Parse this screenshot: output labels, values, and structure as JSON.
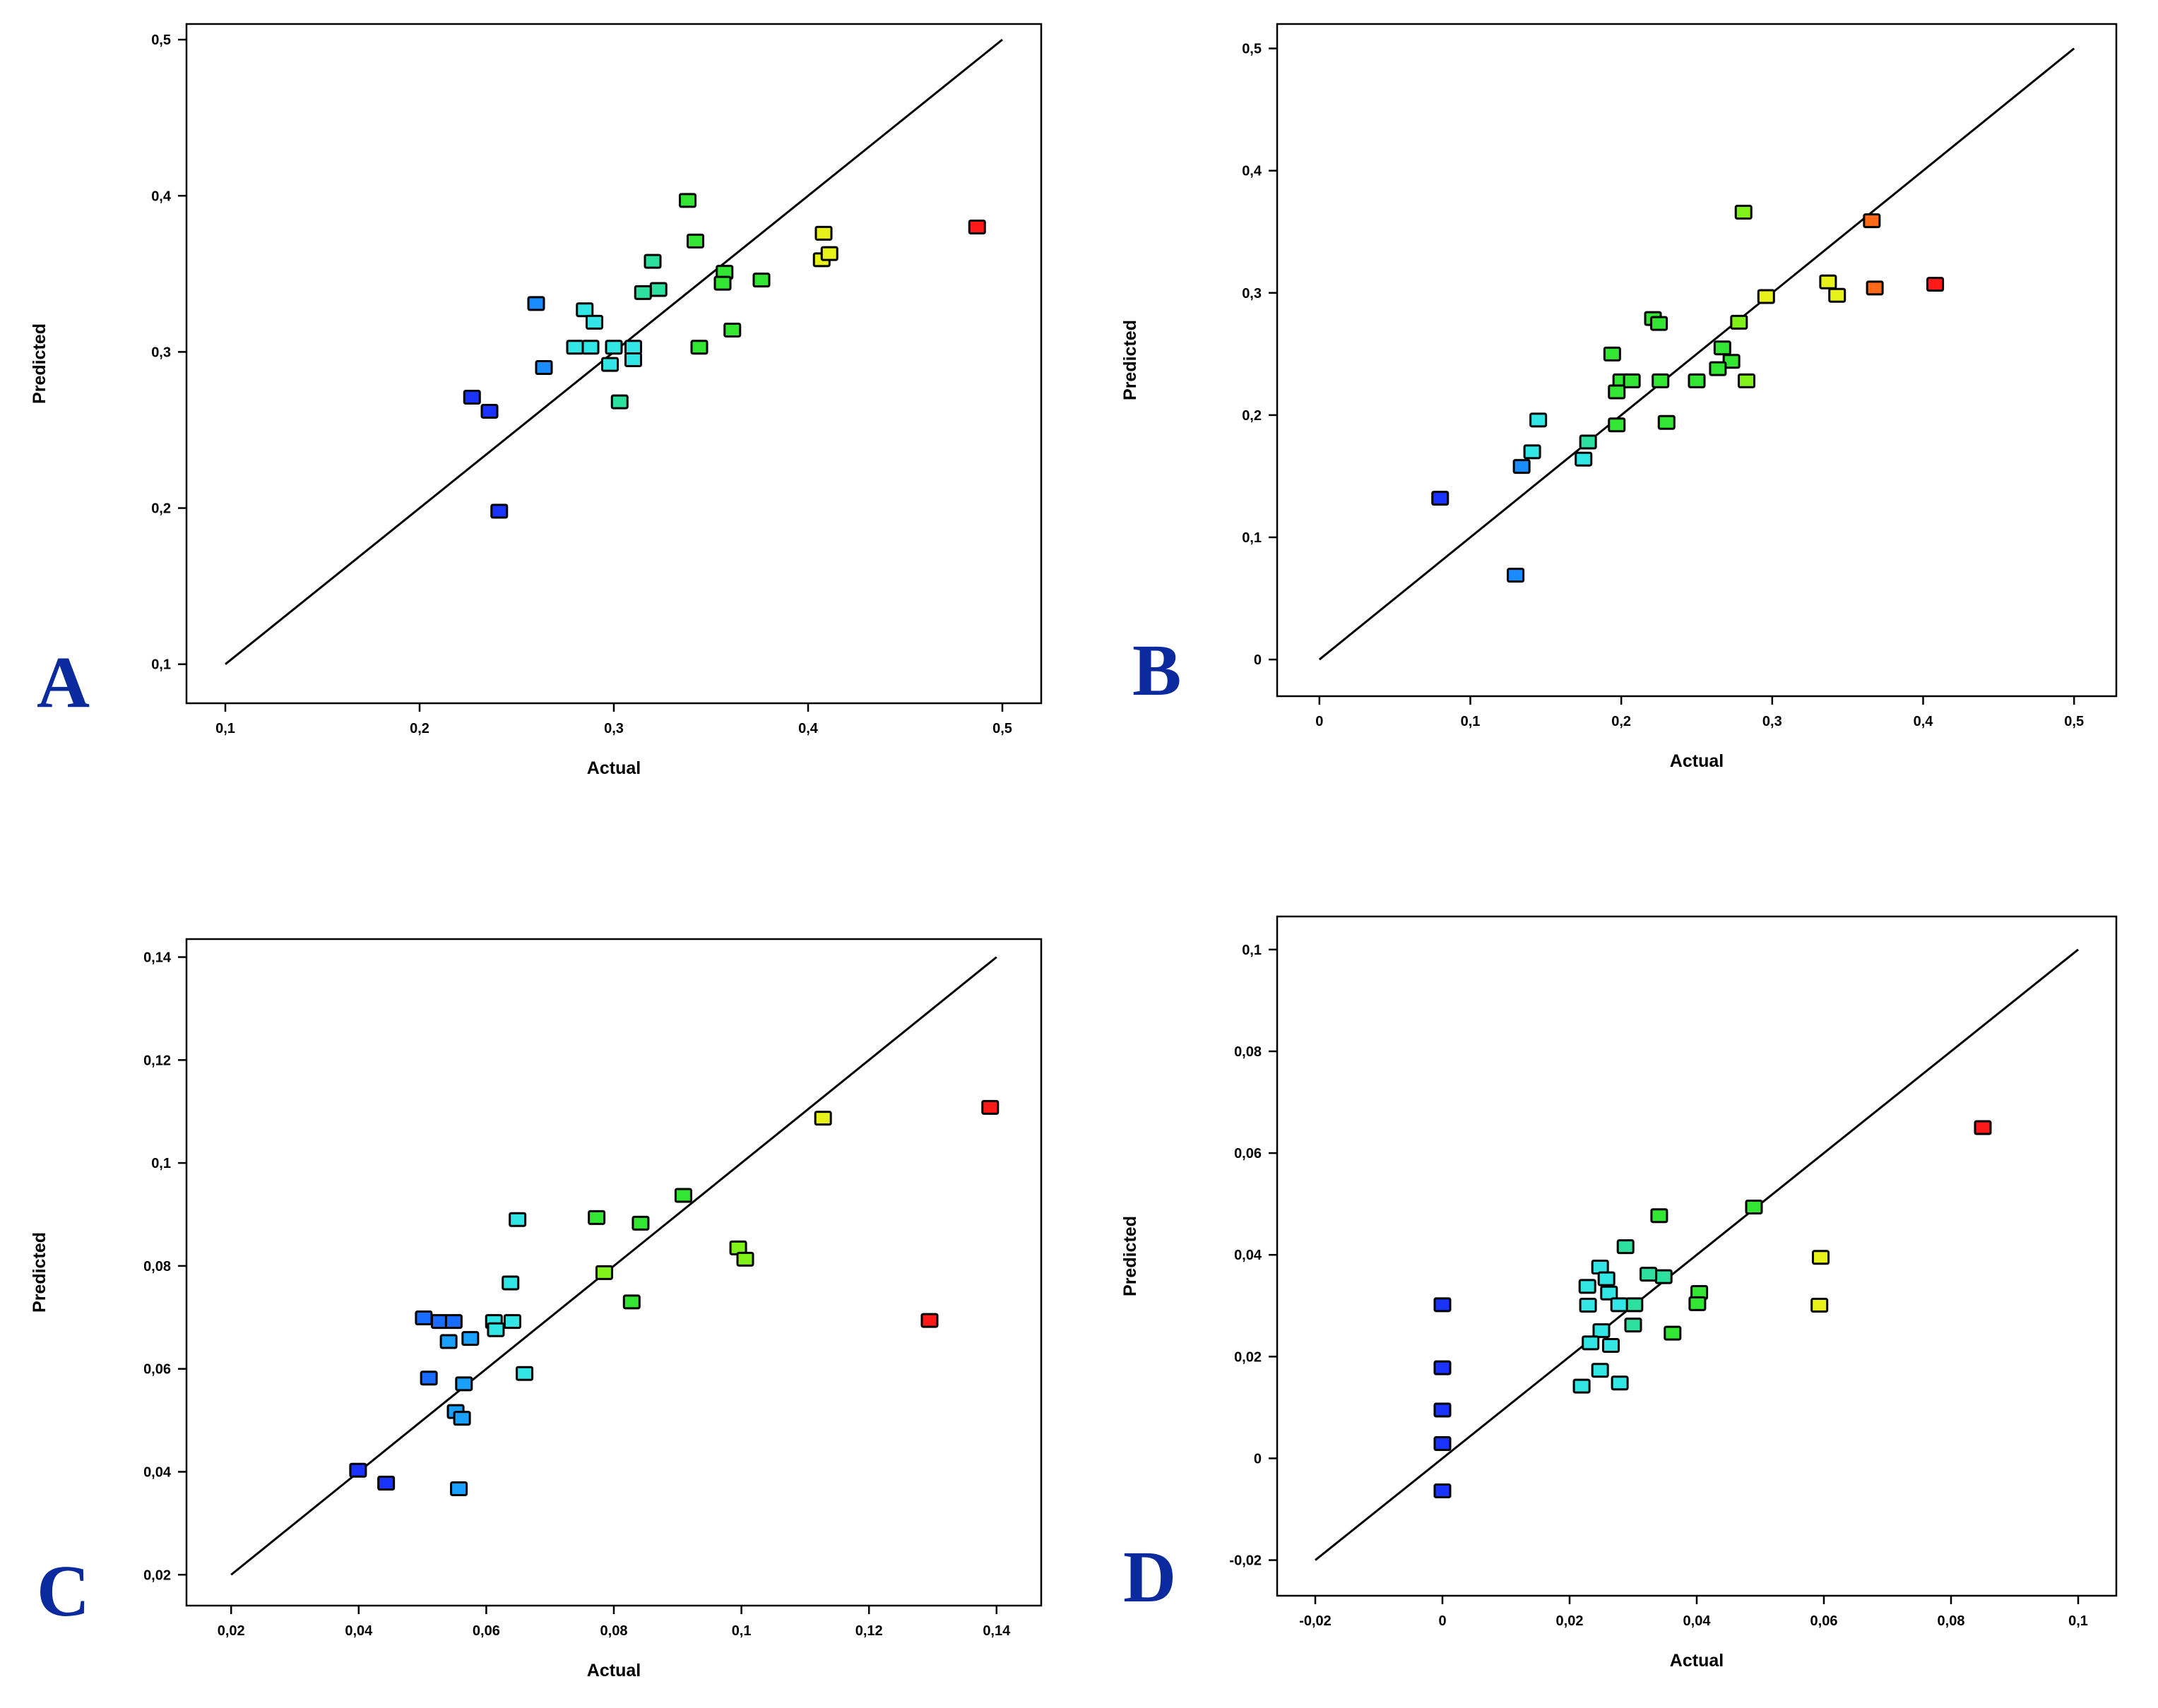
{
  "chart_data": [
    {
      "type": "scatter",
      "panel": "A",
      "xlabel": "Actual",
      "ylabel": "Predicted",
      "xlim": [
        0.08,
        0.52
      ],
      "ylim": [
        0.075,
        0.51
      ],
      "xticks": [
        0.1,
        0.2,
        0.3,
        0.4,
        0.5
      ],
      "xtick_labels": [
        "0,1",
        "0,2",
        "0,3",
        "0,4",
        "0,5"
      ],
      "yticks": [
        0.1,
        0.2,
        0.3,
        0.4,
        0.5
      ],
      "ytick_labels": [
        "0,1",
        "0,2",
        "0,3",
        "0,4",
        "0,5"
      ],
      "reference_line": [
        [
          0.1,
          0.1
        ],
        [
          0.5,
          0.5
        ]
      ],
      "points": [
        {
          "x": 0.487,
          "y": 0.38,
          "color": "#ff1a1a"
        },
        {
          "x": 0.408,
          "y": 0.376,
          "color": "#e6f21a"
        },
        {
          "x": 0.407,
          "y": 0.359,
          "color": "#e6f21a"
        },
        {
          "x": 0.411,
          "y": 0.363,
          "color": "#e6f21a"
        },
        {
          "x": 0.338,
          "y": 0.397,
          "color": "#33e633"
        },
        {
          "x": 0.342,
          "y": 0.371,
          "color": "#33e633"
        },
        {
          "x": 0.357,
          "y": 0.351,
          "color": "#33e633"
        },
        {
          "x": 0.356,
          "y": 0.344,
          "color": "#33e633"
        },
        {
          "x": 0.376,
          "y": 0.346,
          "color": "#33e633"
        },
        {
          "x": 0.361,
          "y": 0.314,
          "color": "#33e633"
        },
        {
          "x": 0.344,
          "y": 0.303,
          "color": "#33e633"
        },
        {
          "x": 0.32,
          "y": 0.358,
          "color": "#2ee0a0"
        },
        {
          "x": 0.323,
          "y": 0.34,
          "color": "#2ee0a0"
        },
        {
          "x": 0.315,
          "y": 0.338,
          "color": "#2ee0a0"
        },
        {
          "x": 0.303,
          "y": 0.268,
          "color": "#2ee0a0"
        },
        {
          "x": 0.285,
          "y": 0.327,
          "color": "#33e6e6"
        },
        {
          "x": 0.29,
          "y": 0.319,
          "color": "#33e6e6"
        },
        {
          "x": 0.28,
          "y": 0.303,
          "color": "#33e6e6"
        },
        {
          "x": 0.288,
          "y": 0.303,
          "color": "#33e6e6"
        },
        {
          "x": 0.3,
          "y": 0.303,
          "color": "#33e6e6"
        },
        {
          "x": 0.31,
          "y": 0.303,
          "color": "#33e6e6"
        },
        {
          "x": 0.298,
          "y": 0.292,
          "color": "#33e6e6"
        },
        {
          "x": 0.31,
          "y": 0.295,
          "color": "#33e6e6"
        },
        {
          "x": 0.26,
          "y": 0.331,
          "color": "#1a8cff"
        },
        {
          "x": 0.264,
          "y": 0.29,
          "color": "#1a8cff"
        },
        {
          "x": 0.227,
          "y": 0.271,
          "color": "#1a33ff"
        },
        {
          "x": 0.236,
          "y": 0.262,
          "color": "#1a33ff"
        },
        {
          "x": 0.241,
          "y": 0.198,
          "color": "#1a33ff"
        }
      ]
    },
    {
      "type": "scatter",
      "panel": "B",
      "xlabel": "Actual",
      "ylabel": "Predicted",
      "xlim": [
        -0.028,
        0.528
      ],
      "ylim": [
        -0.03,
        0.52
      ],
      "xticks": [
        0,
        0.1,
        0.2,
        0.3,
        0.4,
        0.5
      ],
      "xtick_labels": [
        "0",
        "0,1",
        "0,2",
        "0,3",
        "0,4",
        "0,5"
      ],
      "yticks": [
        0,
        0.1,
        0.2,
        0.3,
        0.4,
        0.5
      ],
      "ytick_labels": [
        "0",
        "0,1",
        "0,2",
        "0,3",
        "0,4",
        "0,5"
      ],
      "reference_line": [
        [
          0,
          0
        ],
        [
          0.5,
          0.5
        ]
      ],
      "points": [
        {
          "x": 0.408,
          "y": 0.307,
          "color": "#ff1a1a"
        },
        {
          "x": 0.366,
          "y": 0.359,
          "color": "#ff6a1a"
        },
        {
          "x": 0.368,
          "y": 0.304,
          "color": "#ff6a1a"
        },
        {
          "x": 0.337,
          "y": 0.309,
          "color": "#e6f21a"
        },
        {
          "x": 0.343,
          "y": 0.298,
          "color": "#e6f21a"
        },
        {
          "x": 0.296,
          "y": 0.297,
          "color": "#e6f21a"
        },
        {
          "x": 0.281,
          "y": 0.366,
          "color": "#80f21a"
        },
        {
          "x": 0.278,
          "y": 0.276,
          "color": "#80f21a"
        },
        {
          "x": 0.283,
          "y": 0.228,
          "color": "#80f21a"
        },
        {
          "x": 0.221,
          "y": 0.279,
          "color": "#33e633"
        },
        {
          "x": 0.225,
          "y": 0.275,
          "color": "#33e633"
        },
        {
          "x": 0.273,
          "y": 0.244,
          "color": "#33e633"
        },
        {
          "x": 0.267,
          "y": 0.255,
          "color": "#33e633"
        },
        {
          "x": 0.264,
          "y": 0.238,
          "color": "#33e633"
        },
        {
          "x": 0.25,
          "y": 0.228,
          "color": "#33e633"
        },
        {
          "x": 0.226,
          "y": 0.228,
          "color": "#33e633"
        },
        {
          "x": 0.194,
          "y": 0.25,
          "color": "#33e633"
        },
        {
          "x": 0.2,
          "y": 0.228,
          "color": "#33e633"
        },
        {
          "x": 0.207,
          "y": 0.228,
          "color": "#33e633"
        },
        {
          "x": 0.197,
          "y": 0.219,
          "color": "#33e633"
        },
        {
          "x": 0.23,
          "y": 0.194,
          "color": "#33e633"
        },
        {
          "x": 0.197,
          "y": 0.192,
          "color": "#33e633"
        },
        {
          "x": 0.178,
          "y": 0.178,
          "color": "#2ee0a0"
        },
        {
          "x": 0.145,
          "y": 0.196,
          "color": "#33e6e6"
        },
        {
          "x": 0.141,
          "y": 0.17,
          "color": "#33e6e6"
        },
        {
          "x": 0.175,
          "y": 0.164,
          "color": "#33e6e6"
        },
        {
          "x": 0.134,
          "y": 0.158,
          "color": "#1a8cff"
        },
        {
          "x": 0.13,
          "y": 0.069,
          "color": "#1a8cff"
        },
        {
          "x": 0.08,
          "y": 0.132,
          "color": "#1a33ff"
        }
      ]
    },
    {
      "type": "scatter",
      "panel": "C",
      "xlabel": "Actual",
      "ylabel": "Predicted",
      "xlim": [
        0.013,
        0.147
      ],
      "ylim": [
        0.014,
        0.1435
      ],
      "xticks": [
        0.02,
        0.04,
        0.06,
        0.08,
        0.1,
        0.12,
        0.14
      ],
      "xtick_labels": [
        "0,02",
        "0,04",
        "0,06",
        "0,08",
        "0,1",
        "0,12",
        "0,14"
      ],
      "yticks": [
        0.02,
        0.04,
        0.06,
        0.08,
        0.1,
        0.12,
        0.14
      ],
      "ytick_labels": [
        "0,02",
        "0,04",
        "0,06",
        "0,08",
        "0,1",
        "0,12",
        "0,14"
      ],
      "reference_line": [
        [
          0.02,
          0.02
        ],
        [
          0.14,
          0.14
        ]
      ],
      "points": [
        {
          "x": 0.139,
          "y": 0.1108,
          "color": "#ff1a1a"
        },
        {
          "x": 0.1295,
          "y": 0.0694,
          "color": "#ff1a1a"
        },
        {
          "x": 0.1128,
          "y": 0.1087,
          "color": "#e6f21a"
        },
        {
          "x": 0.0995,
          "y": 0.0835,
          "color": "#80f21a"
        },
        {
          "x": 0.1006,
          "y": 0.0813,
          "color": "#80f21a"
        },
        {
          "x": 0.0909,
          "y": 0.0937,
          "color": "#33e633"
        },
        {
          "x": 0.0842,
          "y": 0.0883,
          "color": "#33e633"
        },
        {
          "x": 0.0773,
          "y": 0.0894,
          "color": "#33e633"
        },
        {
          "x": 0.0828,
          "y": 0.073,
          "color": "#33e633"
        },
        {
          "x": 0.0785,
          "y": 0.0787,
          "color": "#80f21a"
        },
        {
          "x": 0.0649,
          "y": 0.089,
          "color": "#33e6e6"
        },
        {
          "x": 0.0638,
          "y": 0.0767,
          "color": "#33e6e6"
        },
        {
          "x": 0.0612,
          "y": 0.0692,
          "color": "#33e6e6"
        },
        {
          "x": 0.0641,
          "y": 0.0692,
          "color": "#33e6e6"
        },
        {
          "x": 0.0615,
          "y": 0.0676,
          "color": "#33e6e6"
        },
        {
          "x": 0.066,
          "y": 0.0591,
          "color": "#33e6e6"
        },
        {
          "x": 0.0575,
          "y": 0.0659,
          "color": "#1aa0ff"
        },
        {
          "x": 0.0541,
          "y": 0.0653,
          "color": "#1aa0ff"
        },
        {
          "x": 0.0565,
          "y": 0.0571,
          "color": "#1aa0ff"
        },
        {
          "x": 0.0552,
          "y": 0.0517,
          "color": "#1aa0ff"
        },
        {
          "x": 0.0562,
          "y": 0.0504,
          "color": "#1aa0ff"
        },
        {
          "x": 0.0557,
          "y": 0.0367,
          "color": "#1aa0ff"
        },
        {
          "x": 0.0502,
          "y": 0.0699,
          "color": "#1a6cff"
        },
        {
          "x": 0.0527,
          "y": 0.0692,
          "color": "#1a6cff"
        },
        {
          "x": 0.0549,
          "y": 0.0692,
          "color": "#1a6cff"
        },
        {
          "x": 0.051,
          "y": 0.0582,
          "color": "#1a6cff"
        },
        {
          "x": 0.0399,
          "y": 0.0403,
          "color": "#1a33ff"
        },
        {
          "x": 0.0443,
          "y": 0.0378,
          "color": "#1a33ff"
        }
      ]
    },
    {
      "type": "scatter",
      "panel": "D",
      "xlabel": "Actual",
      "ylabel": "Predicted",
      "xlim": [
        -0.026,
        0.106
      ],
      "ylim": [
        -0.027,
        0.1065
      ],
      "xticks": [
        -0.02,
        0,
        0.02,
        0.04,
        0.06,
        0.08,
        0.1
      ],
      "xtick_labels": [
        "-0,02",
        "0",
        "0,02",
        "0,04",
        "0,06",
        "0,08",
        "0,1"
      ],
      "yticks": [
        -0.02,
        0,
        0.02,
        0.04,
        0.06,
        0.08,
        0.1
      ],
      "ytick_labels": [
        "-0,02",
        "0",
        "0,02",
        "0,04",
        "0,06",
        "0,08",
        "0,1"
      ],
      "reference_line": [
        [
          -0.02,
          -0.02
        ],
        [
          0.1,
          0.1
        ]
      ],
      "points": [
        {
          "x": 0.085,
          "y": 0.065,
          "color": "#ff1a1a"
        },
        {
          "x": 0.0595,
          "y": 0.0395,
          "color": "#e6f21a"
        },
        {
          "x": 0.0593,
          "y": 0.0301,
          "color": "#e6f21a"
        },
        {
          "x": 0.049,
          "y": 0.0494,
          "color": "#33e633"
        },
        {
          "x": 0.0341,
          "y": 0.0477,
          "color": "#33e633"
        },
        {
          "x": 0.0404,
          "y": 0.0326,
          "color": "#33e633"
        },
        {
          "x": 0.0401,
          "y": 0.0304,
          "color": "#33e633"
        },
        {
          "x": 0.0362,
          "y": 0.0246,
          "color": "#33e633"
        },
        {
          "x": 0.0288,
          "y": 0.0416,
          "color": "#2ee0a0"
        },
        {
          "x": 0.0348,
          "y": 0.0357,
          "color": "#2ee0a0"
        },
        {
          "x": 0.0324,
          "y": 0.0362,
          "color": "#2ee0a0"
        },
        {
          "x": 0.0302,
          "y": 0.0302,
          "color": "#2ee0a0"
        },
        {
          "x": 0.03,
          "y": 0.0262,
          "color": "#2ee0a0"
        },
        {
          "x": 0.0248,
          "y": 0.0376,
          "color": "#33e6e6"
        },
        {
          "x": 0.0258,
          "y": 0.0353,
          "color": "#33e6e6"
        },
        {
          "x": 0.0228,
          "y": 0.0338,
          "color": "#33e6e6"
        },
        {
          "x": 0.0262,
          "y": 0.0325,
          "color": "#33e6e6"
        },
        {
          "x": 0.0229,
          "y": 0.0301,
          "color": "#33e6e6"
        },
        {
          "x": 0.0278,
          "y": 0.0302,
          "color": "#33e6e6"
        },
        {
          "x": 0.025,
          "y": 0.0251,
          "color": "#33e6e6"
        },
        {
          "x": 0.0233,
          "y": 0.0227,
          "color": "#33e6e6"
        },
        {
          "x": 0.0265,
          "y": 0.0222,
          "color": "#33e6e6"
        },
        {
          "x": 0.0248,
          "y": 0.0173,
          "color": "#33e6e6"
        },
        {
          "x": 0.0219,
          "y": 0.0142,
          "color": "#33e6e6"
        },
        {
          "x": 0.0279,
          "y": 0.0148,
          "color": "#33e6e6"
        },
        {
          "x": 0.0,
          "y": 0.0302,
          "color": "#1a33ff"
        },
        {
          "x": 0.0,
          "y": 0.0178,
          "color": "#1a33ff"
        },
        {
          "x": 0.0,
          "y": 0.0095,
          "color": "#1a33ff"
        },
        {
          "x": 0.0,
          "y": 0.0029,
          "color": "#1a33ff"
        },
        {
          "x": 0.0,
          "y": -0.0064,
          "color": "#1a33ff"
        }
      ]
    }
  ]
}
